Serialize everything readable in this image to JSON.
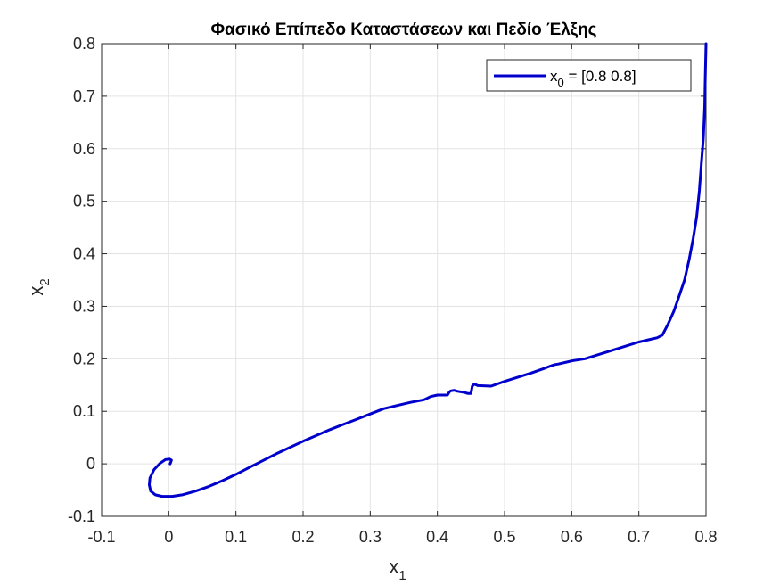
{
  "chart_data": {
    "type": "line",
    "title": "Φασικό Επίπεδο Καταστάσεων και Πεδίο Έλξης",
    "xlabel": {
      "base": "x",
      "sub": "1"
    },
    "ylabel": {
      "base": "x",
      "sub": "2"
    },
    "xlim": [
      -0.1,
      0.8
    ],
    "ylim": [
      -0.1,
      0.8
    ],
    "xticks": [
      -0.1,
      0,
      0.1,
      0.2,
      0.3,
      0.4,
      0.5,
      0.6,
      0.7,
      0.8
    ],
    "xtick_labels": [
      "-0.1",
      "0",
      "0.1",
      "0.2",
      "0.3",
      "0.4",
      "0.5",
      "0.6",
      "0.7",
      "0.8"
    ],
    "yticks": [
      -0.1,
      0,
      0.1,
      0.2,
      0.3,
      0.4,
      0.5,
      0.6,
      0.7,
      0.8
    ],
    "ytick_labels": [
      "-0.1",
      "0",
      "0.1",
      "0.2",
      "0.3",
      "0.4",
      "0.5",
      "0.6",
      "0.7",
      "0.8"
    ],
    "grid": true,
    "legend_position": "top-right",
    "series": [
      {
        "name": "x0 = [0.8 0.8]",
        "legend": {
          "base": "x",
          "sub": "0",
          "rest": " = [0.8        0.8]"
        },
        "color": "#0000cc",
        "x": [
          0.8,
          0.799,
          0.798,
          0.796,
          0.793,
          0.79,
          0.786,
          0.781,
          0.775,
          0.768,
          0.76,
          0.752,
          0.743,
          0.735,
          0.727,
          0.72,
          0.7,
          0.68,
          0.66,
          0.64,
          0.62,
          0.6,
          0.58,
          0.575,
          0.57,
          0.56,
          0.54,
          0.52,
          0.5,
          0.48,
          0.46,
          0.455,
          0.452,
          0.45,
          0.445,
          0.44,
          0.43,
          0.425,
          0.42,
          0.418,
          0.415,
          0.41,
          0.4,
          0.39,
          0.38,
          0.36,
          0.34,
          0.32,
          0.3,
          0.28,
          0.26,
          0.24,
          0.22,
          0.2,
          0.18,
          0.16,
          0.14,
          0.12,
          0.1,
          0.08,
          0.06,
          0.04,
          0.02,
          0.005,
          -0.01,
          -0.02,
          -0.027,
          -0.029,
          -0.028,
          -0.022,
          -0.013,
          -0.005,
          0.001,
          0.004,
          0.003,
          0.002
        ],
        "y": [
          0.8,
          0.74,
          0.68,
          0.62,
          0.57,
          0.52,
          0.47,
          0.43,
          0.39,
          0.35,
          0.32,
          0.29,
          0.265,
          0.245,
          0.24,
          0.238,
          0.232,
          0.224,
          0.216,
          0.208,
          0.2,
          0.196,
          0.19,
          0.189,
          0.187,
          0.182,
          0.173,
          0.165,
          0.157,
          0.148,
          0.149,
          0.152,
          0.148,
          0.134,
          0.134,
          0.136,
          0.138,
          0.14,
          0.139,
          0.137,
          0.131,
          0.131,
          0.131,
          0.128,
          0.122,
          0.117,
          0.111,
          0.105,
          0.095,
          0.085,
          0.075,
          0.065,
          0.054,
          0.043,
          0.031,
          0.019,
          0.006,
          -0.007,
          -0.02,
          -0.032,
          -0.043,
          -0.052,
          -0.059,
          -0.062,
          -0.062,
          -0.059,
          -0.052,
          -0.04,
          -0.027,
          -0.011,
          0.001,
          0.008,
          0.009,
          0.007,
          0.003,
          0.0
        ]
      }
    ]
  }
}
